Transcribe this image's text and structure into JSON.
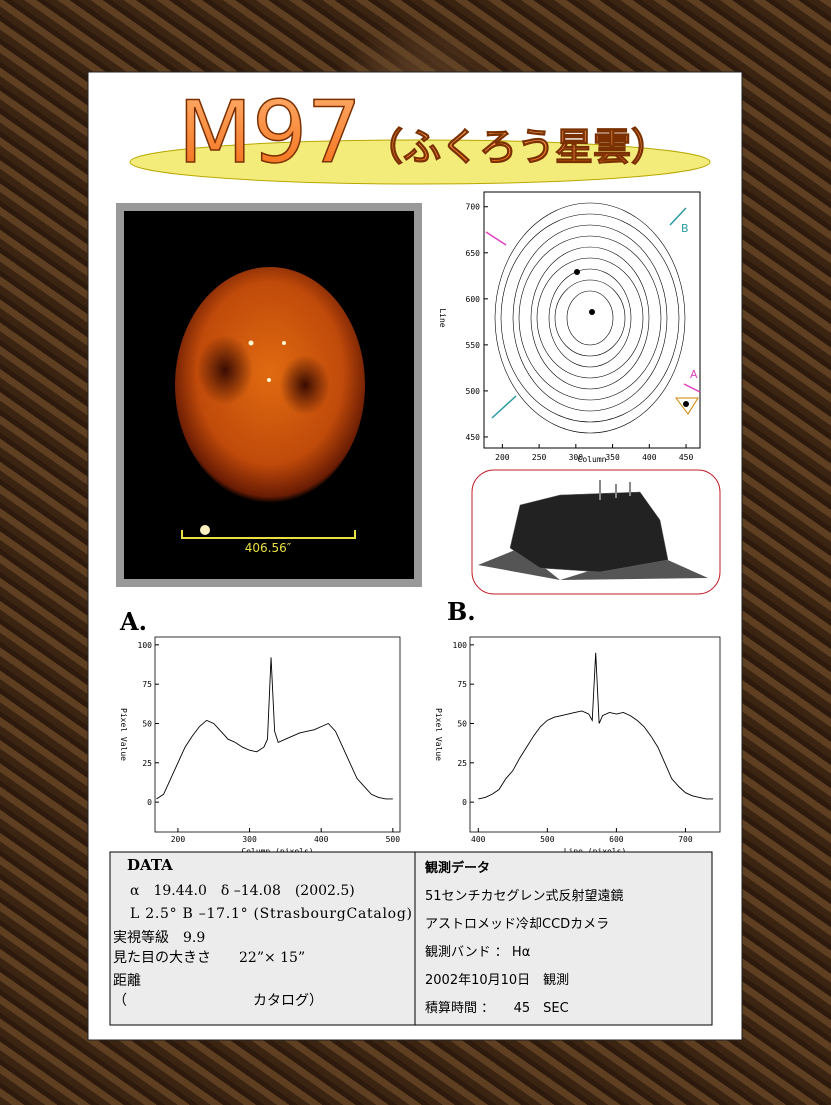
{
  "header": {
    "title": "M97",
    "subtitle": "（ふくろう星雲）"
  },
  "nebula_image": {
    "scale_label": "406.56″"
  },
  "contour_plot": {
    "xlabel": "Column",
    "ylabel": "Line",
    "xlim": [
      175,
      469
    ],
    "ylim": [
      438,
      716
    ],
    "xticks": [
      200,
      250,
      300,
      350,
      400,
      450
    ],
    "yticks": [
      450,
      500,
      550,
      600,
      650,
      700
    ],
    "markers": [
      "A",
      "B"
    ]
  },
  "panel_labels": [
    "A.",
    "B."
  ],
  "chart_data": [
    {
      "type": "line",
      "xlabel": "Column (pixels)",
      "ylabel": "Pixel Value",
      "color": "#000000",
      "xlim": [
        168,
        510
      ],
      "ylim": [
        -19,
        105
      ],
      "xticks": [
        200,
        300,
        400,
        500
      ],
      "yticks": [
        0,
        25,
        50,
        75,
        100
      ],
      "x": [
        170,
        180,
        190,
        200,
        210,
        220,
        230,
        240,
        250,
        260,
        270,
        280,
        290,
        300,
        310,
        320,
        325,
        330,
        335,
        340,
        350,
        360,
        370,
        380,
        390,
        400,
        410,
        420,
        430,
        440,
        450,
        460,
        470,
        480,
        490,
        500
      ],
      "values": [
        2,
        5,
        15,
        25,
        35,
        42,
        48,
        52,
        50,
        45,
        40,
        38,
        35,
        33,
        32,
        35,
        40,
        92,
        45,
        38,
        40,
        42,
        44,
        45,
        46,
        48,
        50,
        45,
        35,
        25,
        15,
        10,
        5,
        3,
        2,
        2
      ]
    },
    {
      "type": "line",
      "xlabel": "Line (pixels)",
      "ylabel": "Pixel Value",
      "color": "#000000",
      "xlim": [
        388,
        750
      ],
      "ylim": [
        -19,
        105
      ],
      "xticks": [
        400,
        500,
        600,
        700
      ],
      "yticks": [
        0,
        25,
        50,
        75,
        100
      ],
      "x": [
        400,
        410,
        420,
        430,
        440,
        450,
        460,
        470,
        480,
        490,
        500,
        510,
        520,
        530,
        540,
        550,
        560,
        565,
        570,
        575,
        580,
        590,
        600,
        610,
        620,
        630,
        640,
        650,
        660,
        670,
        680,
        690,
        700,
        710,
        720,
        730,
        740
      ],
      "values": [
        2,
        3,
        5,
        8,
        15,
        20,
        28,
        35,
        42,
        48,
        52,
        54,
        55,
        56,
        57,
        58,
        56,
        52,
        95,
        50,
        55,
        57,
        56,
        57,
        55,
        52,
        48,
        42,
        35,
        25,
        15,
        10,
        6,
        4,
        3,
        2,
        2
      ]
    }
  ],
  "data_panel": {
    "lines": [
      "DATA",
      "α　19.44.0　δ –14.08　(2002.5)",
      "L  2.5°  B –17.1°  (StrasbourgCatalog)",
      "実視等級　9.9",
      "見た目の大きさ　　22”× 15”",
      "距離",
      "（　　　　　　　　　カタログ）"
    ]
  },
  "observation_panel": {
    "lines": [
      "観測データ",
      "51センチカセグレン式反射望遠鏡",
      "アストロメッド冷却CCDカメラ",
      "観測バンド ： Hα",
      "2002年10月10日　観測",
      "積算時間 ：　　45　SEC"
    ]
  }
}
